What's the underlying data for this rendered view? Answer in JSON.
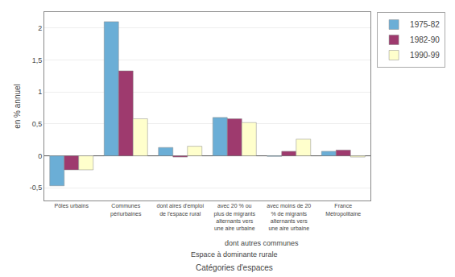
{
  "chart_data": {
    "type": "bar",
    "categories": [
      "Pôles urbains",
      "Communes\npériurbaines",
      "dont aires d'emploi\nde l'espace rural",
      "avec 20 % ou\nplus de migrants\nalternants vers\nune aire urbaine",
      "avec moins de 20\n% de migrants\nalternants vers\nune aire urbaine",
      "France\nMétropolitaine"
    ],
    "series": [
      {
        "name": "1975-82",
        "color": "#6baed6",
        "values": [
          -0.47,
          2.1,
          0.13,
          0.6,
          -0.01,
          0.07
        ]
      },
      {
        "name": "1982-90",
        "color": "#9e3a6e",
        "values": [
          -0.22,
          1.33,
          -0.02,
          0.58,
          0.07,
          0.09
        ]
      },
      {
        "name": "1990-99",
        "color": "#ffffcc",
        "values": [
          -0.22,
          0.58,
          0.15,
          0.52,
          0.26,
          -0.02
        ]
      }
    ],
    "ylabel": "en % annuel",
    "xlabel": "Catégories d'espaces",
    "ylim": [
      -0.7,
      2.25
    ],
    "yticks": [
      {
        "value": -0.5,
        "label": "-0,5"
      },
      0,
      {
        "value": 0.5,
        "label": "0,5"
      },
      1,
      {
        "value": 1.5,
        "label": "1,5"
      },
      2
    ],
    "grid": true,
    "legend": "upper right",
    "annotations": [
      {
        "text": "dont autres communes",
        "x": 3.5
      },
      {
        "text": "Espace à dominante rurale",
        "x": 3
      }
    ]
  }
}
